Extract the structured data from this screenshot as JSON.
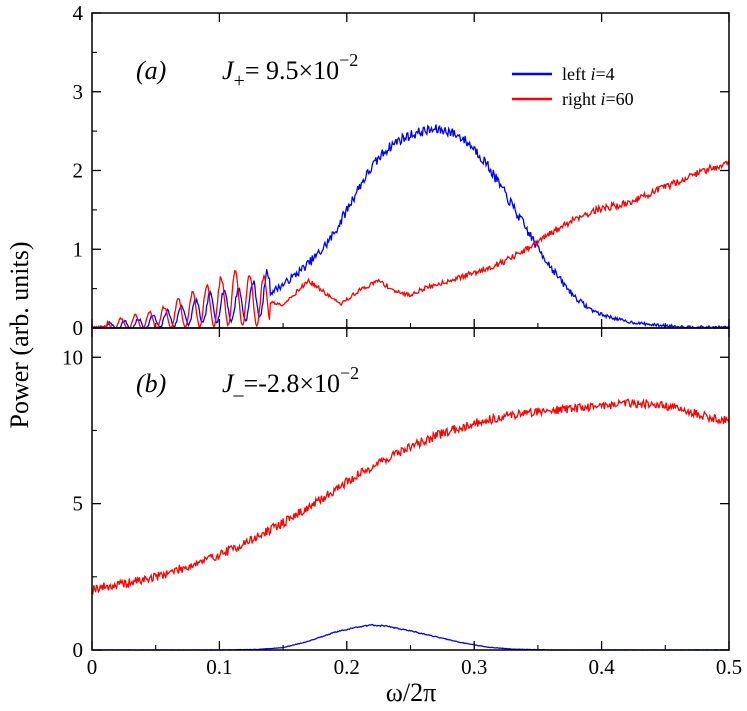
{
  "figure": {
    "ylabel": "Power (arb. units)",
    "xlabel": "ω/2π",
    "colors": {
      "left": "#0000ff",
      "right": "#ff0000",
      "axes": "#000000"
    }
  },
  "chart_data": [
    {
      "type": "line",
      "panel": "(a)",
      "coupling": {
        "symbol": "J",
        "sub": "+",
        "text": "= 9.5×10",
        "exp": "−2"
      },
      "xlim": [
        0,
        0.5
      ],
      "ylim": [
        0,
        4
      ],
      "xticks": [
        0,
        0.1,
        0.2,
        0.3,
        0.4,
        0.5
      ],
      "yticks": [
        0,
        1,
        2,
        3,
        4
      ],
      "ytick_labels": [
        "0",
        "1",
        "2",
        "3",
        "4"
      ],
      "legend": {
        "placement": "top-right",
        "entries": [
          {
            "series": "left",
            "label": "left",
            "index_var": "i",
            "index_val": "=4"
          },
          {
            "series": "right",
            "label": "right",
            "index_var": "i",
            "index_val": "=60"
          }
        ]
      },
      "series": [
        {
          "name": "left i=4",
          "color": "#0000ff",
          "noise": 0.05,
          "x": [
            0.0,
            0.04,
            0.06,
            0.08,
            0.1,
            0.12,
            0.13,
            0.14,
            0.15,
            0.16,
            0.17,
            0.18,
            0.19,
            0.2,
            0.21,
            0.22,
            0.23,
            0.24,
            0.25,
            0.26,
            0.27,
            0.28,
            0.29,
            0.3,
            0.31,
            0.32,
            0.33,
            0.34,
            0.35,
            0.36,
            0.37,
            0.38,
            0.39,
            0.4,
            0.42,
            0.44,
            0.46,
            0.48,
            0.5
          ],
          "y": [
            0.0,
            0.05,
            0.12,
            0.2,
            0.28,
            0.3,
            0.38,
            0.45,
            0.55,
            0.68,
            0.82,
            0.98,
            1.2,
            1.5,
            1.8,
            2.05,
            2.25,
            2.38,
            2.45,
            2.5,
            2.52,
            2.5,
            2.42,
            2.28,
            2.08,
            1.82,
            1.55,
            1.28,
            1.02,
            0.78,
            0.56,
            0.38,
            0.25,
            0.17,
            0.08,
            0.04,
            0.02,
            0.01,
            0.01
          ]
        },
        {
          "name": "right i=60",
          "color": "#ff0000",
          "noise": 0.035,
          "x": [
            0.0,
            0.05,
            0.09,
            0.11,
            0.13,
            0.15,
            0.17,
            0.185,
            0.195,
            0.21,
            0.225,
            0.24,
            0.25,
            0.26,
            0.28,
            0.3,
            0.32,
            0.34,
            0.36,
            0.38,
            0.4,
            0.42,
            0.44,
            0.46,
            0.48,
            0.5
          ],
          "y": [
            0.0,
            0.1,
            0.28,
            0.38,
            0.35,
            0.3,
            0.6,
            0.42,
            0.3,
            0.48,
            0.6,
            0.45,
            0.42,
            0.5,
            0.6,
            0.7,
            0.82,
            0.98,
            1.2,
            1.4,
            1.52,
            1.58,
            1.72,
            1.86,
            2.0,
            2.1
          ]
        }
      ]
    },
    {
      "type": "line",
      "panel": "(b)",
      "coupling": {
        "symbol": "J",
        "sub": "_",
        "text": "=-2.8×10",
        "exp": "−2"
      },
      "xlim": [
        0,
        0.5
      ],
      "ylim": [
        0,
        11
      ],
      "xticks": [
        0,
        0.1,
        0.2,
        0.3,
        0.4,
        0.5
      ],
      "xtick_labels": [
        "0",
        "0.1",
        "0.2",
        "0.3",
        "0.4",
        "0.5"
      ],
      "yticks": [
        0,
        5,
        10
      ],
      "ytick_labels": [
        "0",
        "5",
        "10"
      ],
      "series": [
        {
          "name": "right i=60",
          "color": "#ff0000",
          "noise": 0.12,
          "x": [
            0.0,
            0.025,
            0.05,
            0.075,
            0.1,
            0.125,
            0.15,
            0.175,
            0.2,
            0.225,
            0.25,
            0.275,
            0.3,
            0.325,
            0.35,
            0.375,
            0.4,
            0.42,
            0.44,
            0.46,
            0.48,
            0.5
          ],
          "y": [
            2.1,
            2.25,
            2.5,
            2.85,
            3.25,
            3.75,
            4.35,
            5.0,
            5.75,
            6.4,
            6.95,
            7.4,
            7.75,
            8.0,
            8.15,
            8.25,
            8.35,
            8.45,
            8.4,
            8.25,
            8.0,
            7.8
          ]
        },
        {
          "name": "left i=4",
          "color": "#0000ff",
          "noise": 0.02,
          "x": [
            0.0,
            0.1,
            0.13,
            0.15,
            0.17,
            0.19,
            0.21,
            0.22,
            0.23,
            0.25,
            0.27,
            0.29,
            0.31,
            0.33,
            0.36,
            0.5
          ],
          "y": [
            0.0,
            0.0,
            0.02,
            0.08,
            0.3,
            0.6,
            0.8,
            0.85,
            0.82,
            0.65,
            0.45,
            0.25,
            0.1,
            0.03,
            0.0,
            0.0
          ]
        }
      ]
    }
  ]
}
